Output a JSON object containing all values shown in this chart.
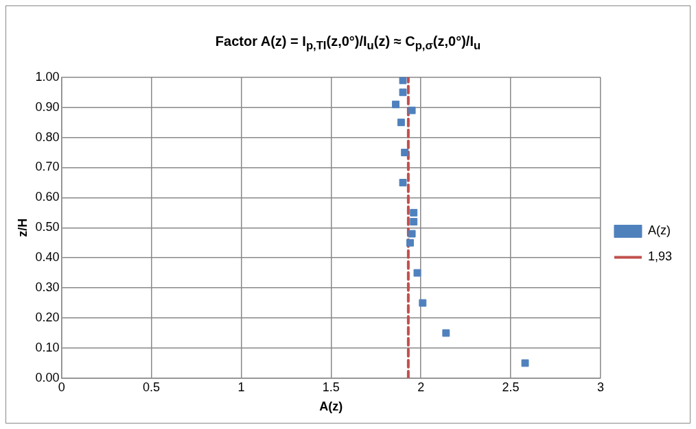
{
  "chart_data": {
    "type": "scatter",
    "title": "Factor A(z) = I$_{p,TI}$(z,0°)/I$_{u}$(z) ≈ C$_{p,σ}$(z,0°)/I$_{u}$",
    "xlabel": "A(z)",
    "ylabel": "z/H",
    "xlim": [
      0,
      3
    ],
    "xticks": [
      0,
      0.5,
      1,
      1.5,
      2,
      2.5,
      3
    ],
    "ylim": [
      0,
      1
    ],
    "yticks": [
      {
        "value": 0,
        "label": "0.00"
      },
      {
        "value": 0.1,
        "label": "0.10"
      },
      {
        "value": 0.2,
        "label": "0.20"
      },
      {
        "value": 0.3,
        "label": "0.30"
      },
      {
        "value": 0.4,
        "label": "0.40"
      },
      {
        "value": 0.5,
        "label": "0.50"
      },
      {
        "value": 0.6,
        "label": "0.60"
      },
      {
        "value": 0.7,
        "label": "0.70"
      },
      {
        "value": 0.8,
        "label": "0.80"
      },
      {
        "value": 0.9,
        "label": "0.90"
      },
      {
        "value": 1,
        "label": "1.00"
      }
    ],
    "grid": true,
    "legend": "right",
    "series": [
      {
        "name": "A(z)",
        "type": "scatter",
        "color": "#4f81bd",
        "marker": "square",
        "x": [
          1.9,
          1.9,
          1.86,
          1.95,
          1.89,
          1.91,
          1.9,
          1.96,
          1.96,
          1.95,
          1.94,
          1.98,
          2.01,
          2.14,
          2.58
        ],
        "values": [
          0.99,
          0.95,
          0.91,
          0.89,
          0.85,
          0.75,
          0.65,
          0.55,
          0.52,
          0.48,
          0.45,
          0.35,
          0.25,
          0.15,
          0.05
        ]
      },
      {
        "name": "1,93",
        "type": "line",
        "color": "#c0504d",
        "marker": "none",
        "line_style": "dashed",
        "x": [
          1.93,
          1.93
        ],
        "values": [
          0,
          1
        ]
      }
    ]
  }
}
